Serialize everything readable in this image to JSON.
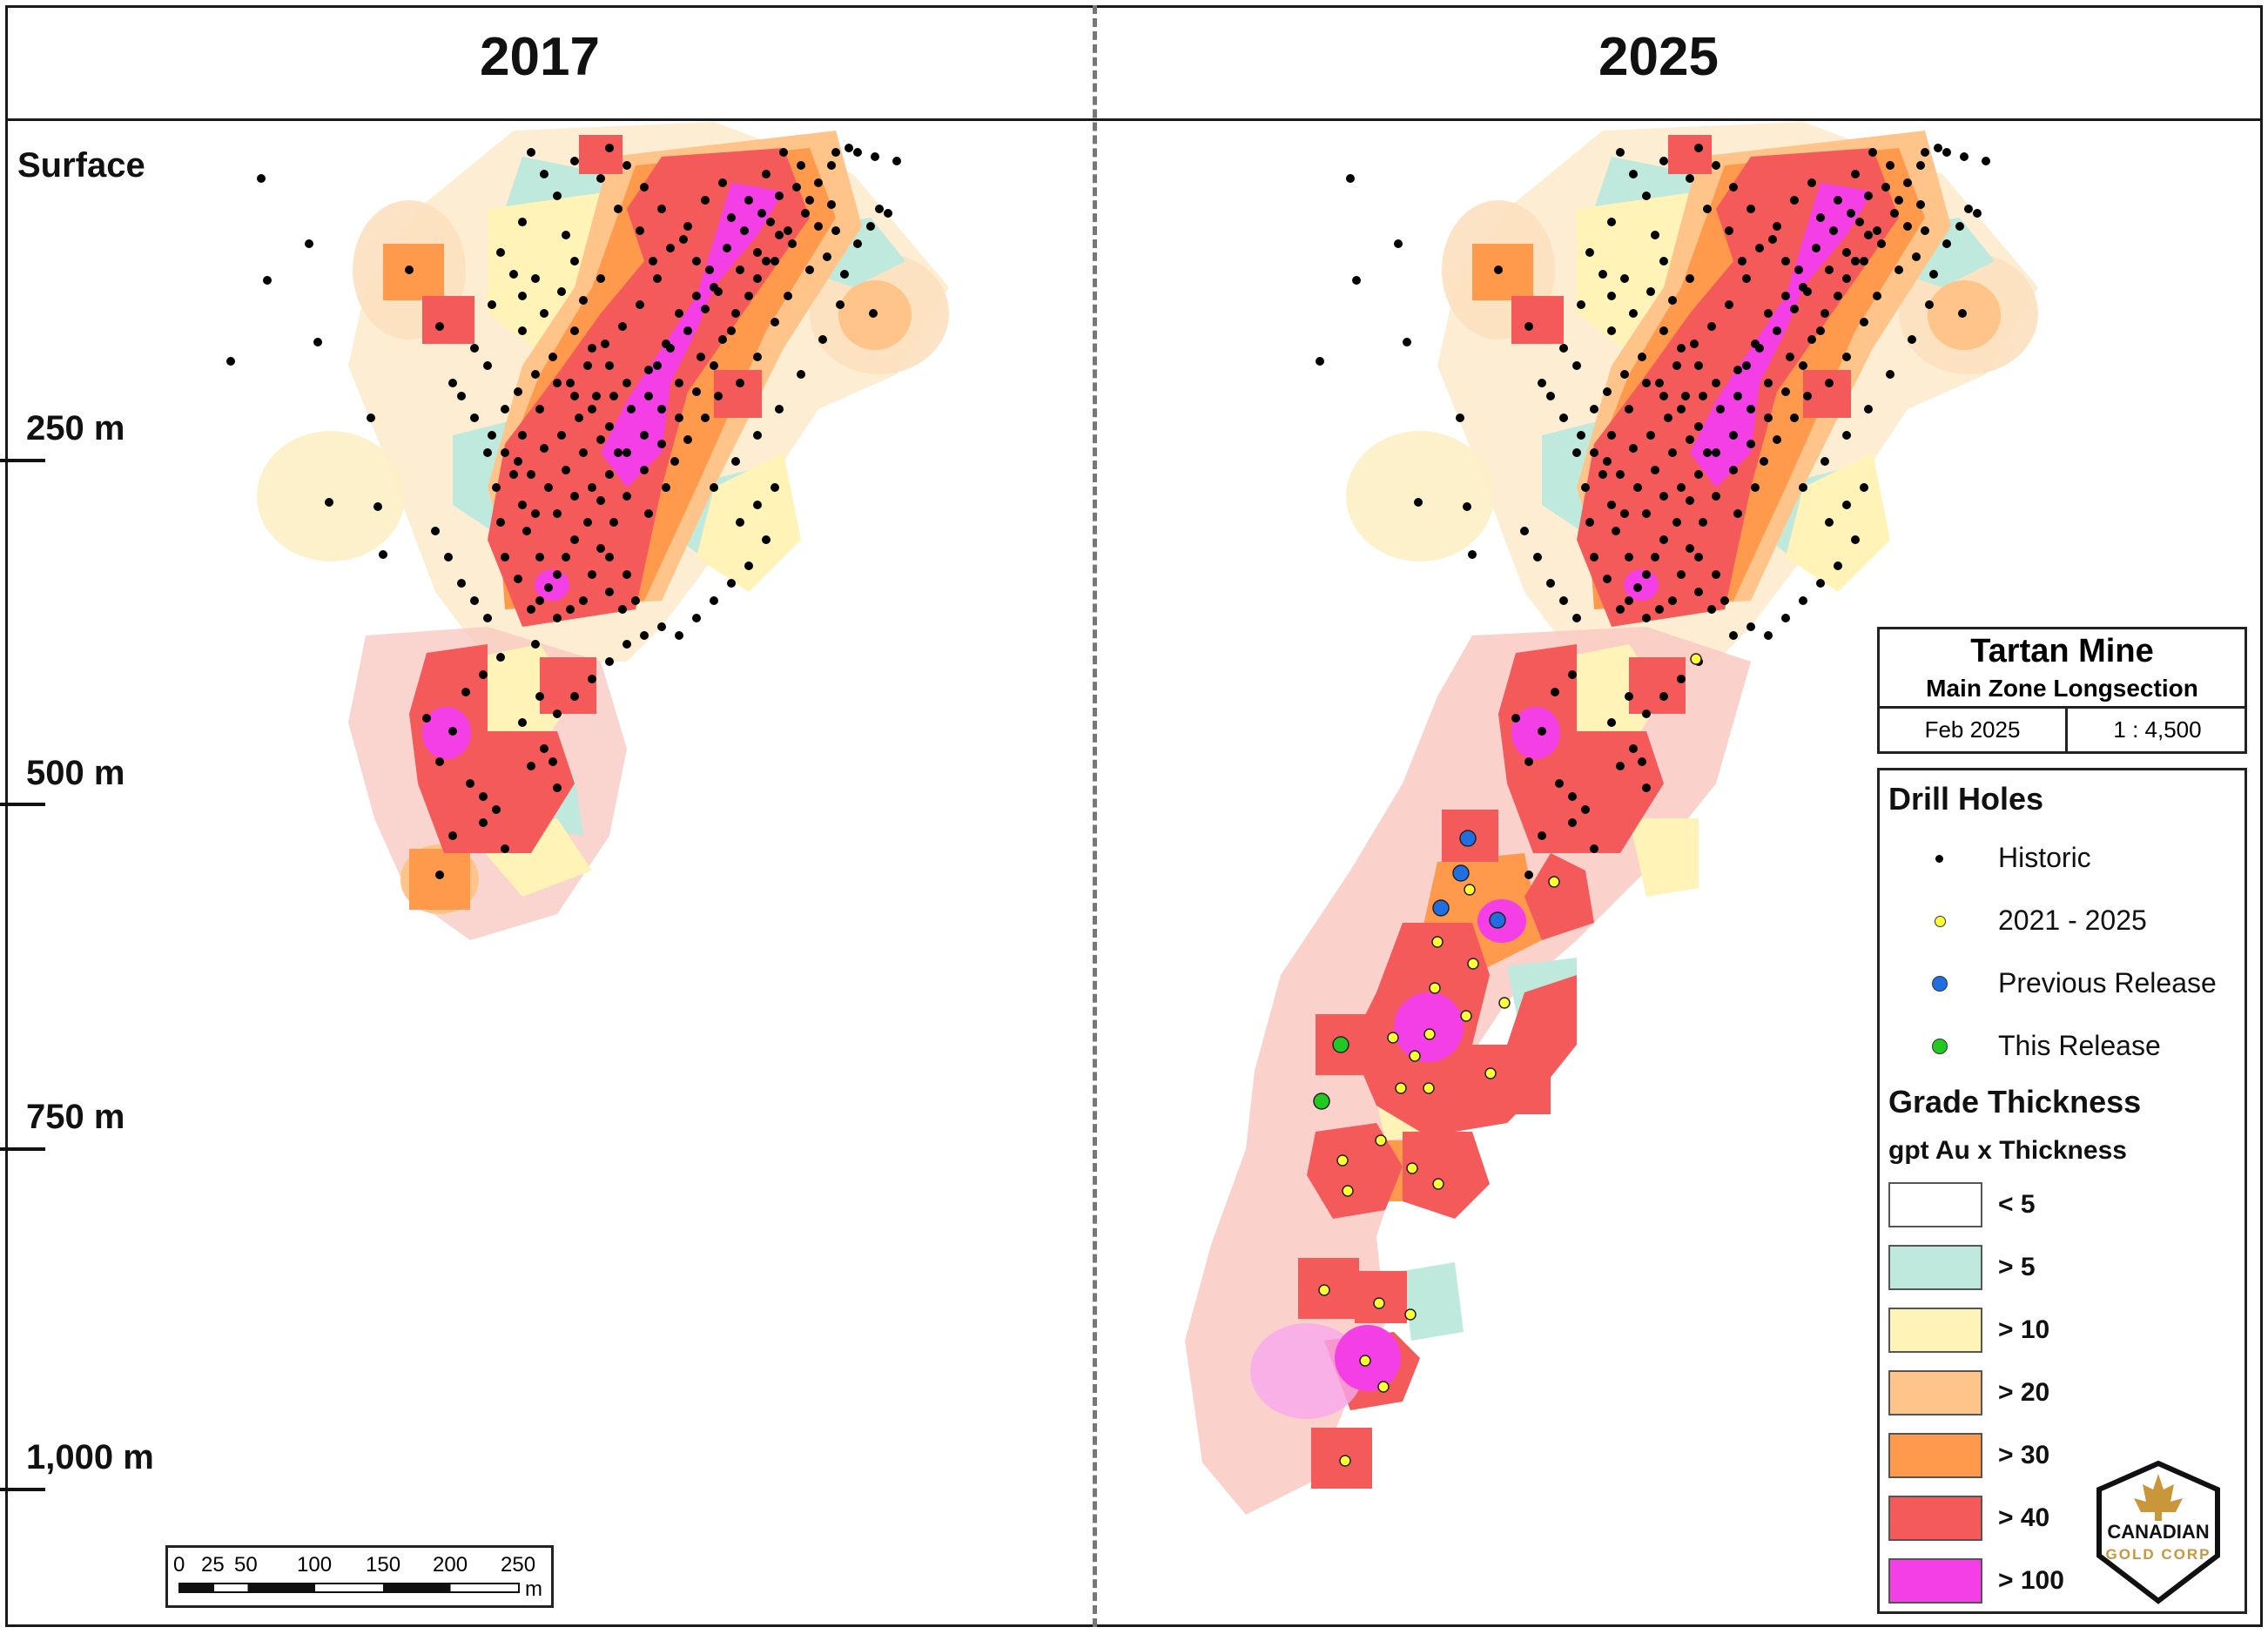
{
  "panels": [
    {
      "title": "2017"
    },
    {
      "title": "2025"
    }
  ],
  "depth_labels": [
    "Surface",
    "250 m",
    "500 m",
    "750 m",
    "1,000 m"
  ],
  "scale_bar": {
    "ticks": [
      "0",
      "25",
      "50",
      "100",
      "150",
      "200",
      "250"
    ],
    "unit": "m"
  },
  "title_block": {
    "title": "Tartan Mine",
    "subtitle": "Main Zone Longsection",
    "date": "Feb 2025",
    "scale": "1 : 4,500"
  },
  "legend": {
    "drill_holes_heading": "Drill Holes",
    "drill_holes": [
      {
        "label": "Historic",
        "color": "#000000"
      },
      {
        "label": "2021 - 2025",
        "color": "#ffff33"
      },
      {
        "label": "Previous Release",
        "color": "#1f6fe0"
      },
      {
        "label": "This Release",
        "color": "#22c922"
      }
    ],
    "grade_heading": "Grade Thickness",
    "grade_subheading": "gpt Au x Thickness",
    "grade_classes": [
      {
        "label": "< 5",
        "color": "#ffffff"
      },
      {
        "label": "> 5",
        "color": "#bfe9dd"
      },
      {
        "label": "> 10",
        "color": "#fff3b8"
      },
      {
        "label": "> 20",
        "color": "#ffc48a"
      },
      {
        "label": "> 30",
        "color": "#ff9a4d"
      },
      {
        "label": "> 40",
        "color": "#f45a5a"
      },
      {
        "label": "> 100",
        "color": "#f53fe6"
      }
    ]
  },
  "logo": {
    "line1": "CANADIAN",
    "line2": "GOLD CORP"
  }
}
